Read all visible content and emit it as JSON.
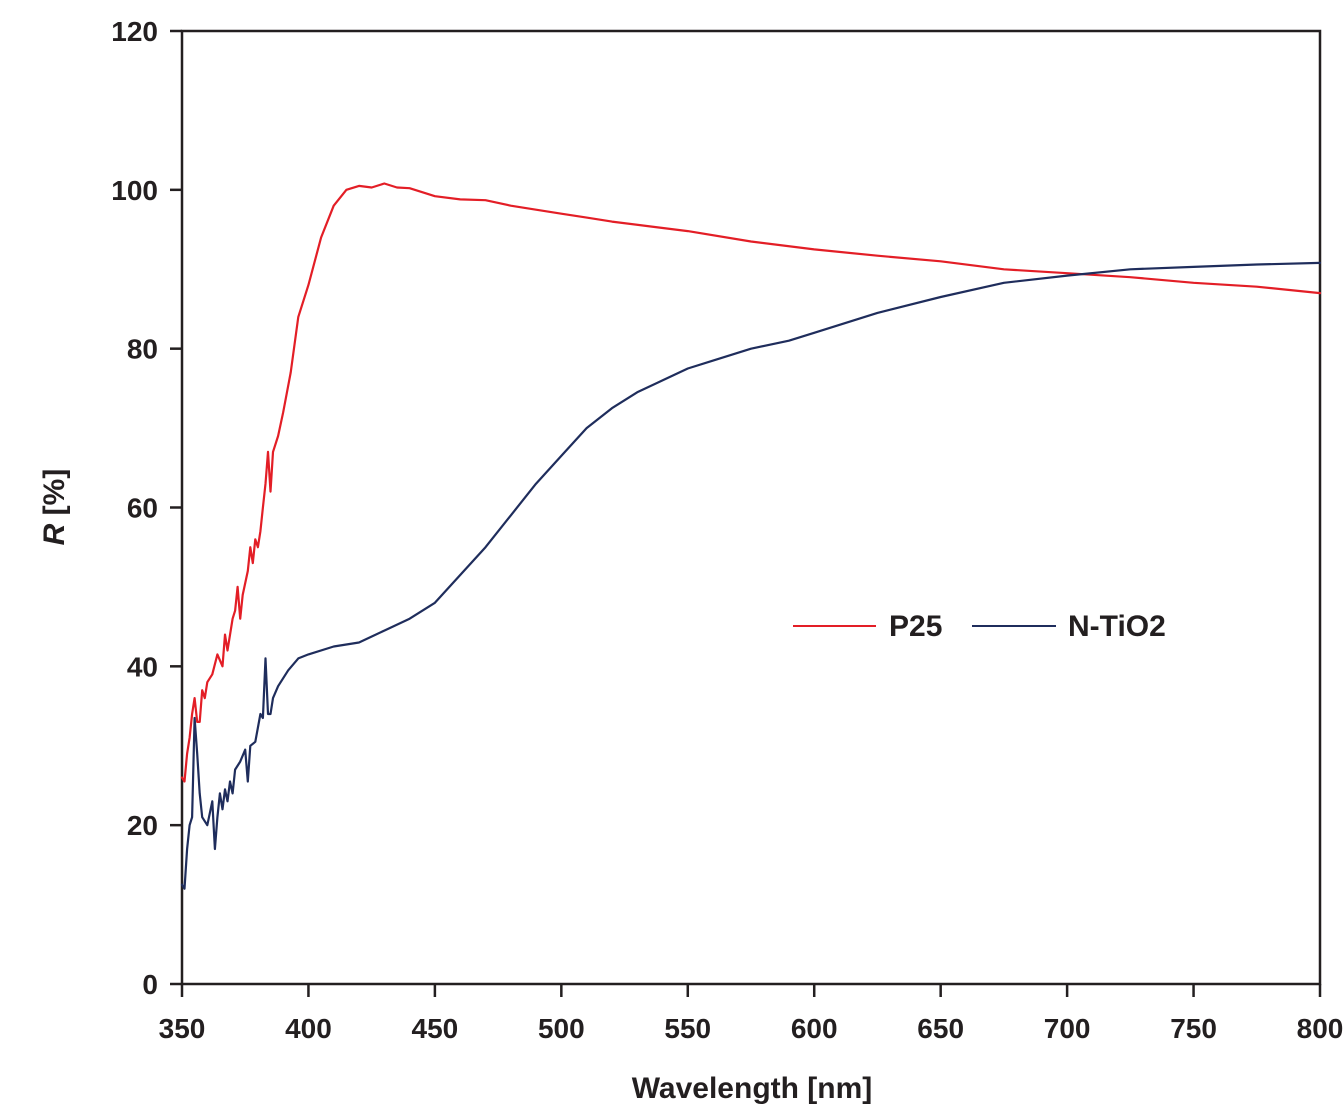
{
  "chart_data": {
    "type": "line",
    "title": "",
    "xlabel": "Wavelength [nm]",
    "ylabel_italic": "R",
    "ylabel_rest": " [%]",
    "ylabel": "R [%]",
    "xlim": [
      350,
      800
    ],
    "ylim": [
      0,
      120
    ],
    "x_ticks": [
      350,
      400,
      450,
      500,
      550,
      600,
      650,
      700,
      750,
      800
    ],
    "y_ticks": [
      0,
      20,
      40,
      60,
      80,
      100,
      120
    ],
    "grid": false,
    "legend_position": "center-right inside plot (approx. 550-750 nm, R≈45)",
    "series": [
      {
        "name": "P25",
        "color": "#e31e26",
        "points": [
          [
            350,
            26
          ],
          [
            351,
            25.5
          ],
          [
            352,
            29
          ],
          [
            353,
            31
          ],
          [
            354,
            34
          ],
          [
            355,
            36
          ],
          [
            356,
            33
          ],
          [
            357,
            33
          ],
          [
            358,
            37
          ],
          [
            359,
            36
          ],
          [
            360,
            38
          ],
          [
            362,
            39
          ],
          [
            364,
            41.5
          ],
          [
            366,
            40
          ],
          [
            367,
            44
          ],
          [
            368,
            42
          ],
          [
            370,
            46
          ],
          [
            371,
            47
          ],
          [
            372,
            50
          ],
          [
            373,
            46
          ],
          [
            374,
            49
          ],
          [
            376,
            52
          ],
          [
            377,
            55
          ],
          [
            378,
            53
          ],
          [
            379,
            56
          ],
          [
            380,
            55
          ],
          [
            381,
            57
          ],
          [
            382,
            60
          ],
          [
            383,
            63
          ],
          [
            384,
            67
          ],
          [
            385,
            62
          ],
          [
            386,
            67
          ],
          [
            388,
            69
          ],
          [
            390,
            72
          ],
          [
            393,
            77
          ],
          [
            396,
            84
          ],
          [
            400,
            88
          ],
          [
            405,
            94
          ],
          [
            410,
            98
          ],
          [
            415,
            100
          ],
          [
            420,
            100.5
          ],
          [
            425,
            100.3
          ],
          [
            430,
            100.8
          ],
          [
            435,
            100.3
          ],
          [
            440,
            100.2
          ],
          [
            450,
            99.2
          ],
          [
            460,
            98.8
          ],
          [
            470,
            98.7
          ],
          [
            480,
            98
          ],
          [
            490,
            97.5
          ],
          [
            500,
            97
          ],
          [
            510,
            96.5
          ],
          [
            520,
            96
          ],
          [
            535,
            95.4
          ],
          [
            550,
            94.8
          ],
          [
            575,
            93.5
          ],
          [
            600,
            92.5
          ],
          [
            625,
            91.7
          ],
          [
            650,
            91
          ],
          [
            675,
            90
          ],
          [
            700,
            89.5
          ],
          [
            725,
            89
          ],
          [
            750,
            88.3
          ],
          [
            775,
            87.8
          ],
          [
            800,
            87
          ]
        ]
      },
      {
        "name": "N-TiO2",
        "color": "#1f2d5c",
        "points": [
          [
            350,
            12.5
          ],
          [
            351,
            12
          ],
          [
            352,
            17
          ],
          [
            353,
            20
          ],
          [
            354,
            21
          ],
          [
            355,
            33.5
          ],
          [
            356,
            29
          ],
          [
            357,
            24
          ],
          [
            358,
            21
          ],
          [
            360,
            20
          ],
          [
            362,
            23
          ],
          [
            363,
            17
          ],
          [
            364,
            21
          ],
          [
            365,
            24
          ],
          [
            366,
            22
          ],
          [
            367,
            24.5
          ],
          [
            368,
            23
          ],
          [
            369,
            25.5
          ],
          [
            370,
            24
          ],
          [
            371,
            27
          ],
          [
            373,
            28
          ],
          [
            375,
            29.5
          ],
          [
            376,
            25.5
          ],
          [
            377,
            30
          ],
          [
            379,
            30.5
          ],
          [
            381,
            34
          ],
          [
            382,
            33.5
          ],
          [
            383,
            41
          ],
          [
            384,
            34
          ],
          [
            385,
            34
          ],
          [
            386,
            36
          ],
          [
            388,
            37.5
          ],
          [
            392,
            39.5
          ],
          [
            396,
            41
          ],
          [
            400,
            41.5
          ],
          [
            410,
            42.5
          ],
          [
            420,
            43
          ],
          [
            430,
            44.5
          ],
          [
            440,
            46
          ],
          [
            450,
            48
          ],
          [
            460,
            51.5
          ],
          [
            470,
            55
          ],
          [
            480,
            59
          ],
          [
            490,
            63
          ],
          [
            500,
            66.5
          ],
          [
            510,
            70
          ],
          [
            520,
            72.5
          ],
          [
            530,
            74.5
          ],
          [
            540,
            76
          ],
          [
            550,
            77.5
          ],
          [
            560,
            78.5
          ],
          [
            575,
            80
          ],
          [
            590,
            81
          ],
          [
            600,
            82
          ],
          [
            625,
            84.5
          ],
          [
            650,
            86.5
          ],
          [
            675,
            88.3
          ],
          [
            700,
            89.2
          ],
          [
            725,
            90
          ],
          [
            750,
            90.3
          ],
          [
            775,
            90.6
          ],
          [
            800,
            90.8
          ]
        ]
      }
    ]
  },
  "legend": {
    "items": [
      {
        "label": "P25",
        "color": "#e31e26"
      },
      {
        "label": "N-TiO2",
        "color": "#1f2d5c"
      }
    ]
  },
  "colors": {
    "axis": "#231f20",
    "background": "#ffffff"
  }
}
